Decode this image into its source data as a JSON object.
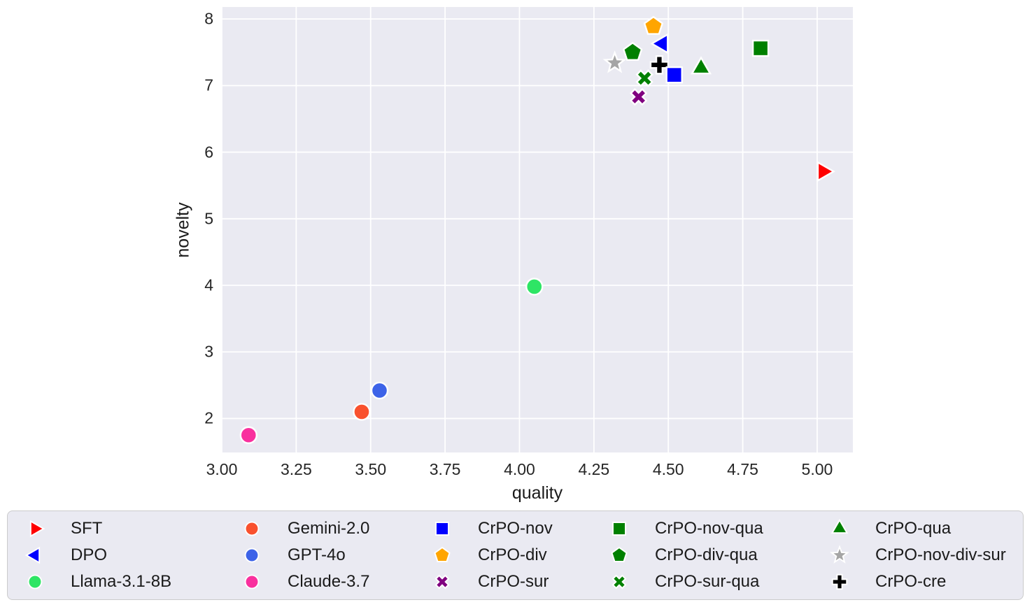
{
  "figure": {
    "background": "#ffffff",
    "plot_background": "#eaeaf2",
    "grid_color": "#ffffff",
    "text_color": "#262626"
  },
  "chart_data": {
    "type": "scatter",
    "title": "",
    "xlabel": "quality",
    "ylabel": "novelty",
    "xlim": [
      3.0,
      5.12
    ],
    "ylim": [
      1.49,
      8.18
    ],
    "grid": true,
    "legend_position": "bottom",
    "x_ticks": [
      3.0,
      3.25,
      3.5,
      3.75,
      4.0,
      4.25,
      4.5,
      4.75,
      5.0
    ],
    "x_tick_labels": [
      "3.00",
      "3.25",
      "3.50",
      "3.75",
      "4.00",
      "4.25",
      "4.50",
      "4.75",
      "5.00"
    ],
    "y_ticks": [
      2,
      3,
      4,
      5,
      6,
      7,
      8
    ],
    "y_tick_labels": [
      "2",
      "3",
      "4",
      "5",
      "6",
      "7",
      "8"
    ],
    "marker_edge_color": "#ffffff",
    "series": [
      {
        "name": "SFT",
        "marker": "triangle-right",
        "color": "#ff0000",
        "x": 5.02,
        "y": 5.71
      },
      {
        "name": "DPO",
        "marker": "triangle-left",
        "color": "#0000ff",
        "x": 4.48,
        "y": 7.63
      },
      {
        "name": "Llama-3.1-8B",
        "marker": "circle",
        "color": "#2ee565",
        "x": 4.05,
        "y": 3.98
      },
      {
        "name": "Gemini-2.0",
        "marker": "circle",
        "color": "#f9512e",
        "x": 3.47,
        "y": 2.1
      },
      {
        "name": "GPT-4o",
        "marker": "circle",
        "color": "#3d63e8",
        "x": 3.53,
        "y": 2.42
      },
      {
        "name": "Claude-3.7",
        "marker": "circle",
        "color": "#f9309e",
        "x": 3.09,
        "y": 1.75
      },
      {
        "name": "CrPO-nov",
        "marker": "square",
        "color": "#0000ff",
        "x": 4.52,
        "y": 7.16
      },
      {
        "name": "CrPO-div",
        "marker": "pentagon",
        "color": "#ffa500",
        "x": 4.45,
        "y": 7.89
      },
      {
        "name": "CrPO-sur",
        "marker": "x",
        "color": "#800080",
        "x": 4.4,
        "y": 6.83
      },
      {
        "name": "CrPO-nov-qua",
        "marker": "square",
        "color": "#008000",
        "x": 4.81,
        "y": 7.56
      },
      {
        "name": "CrPO-div-qua",
        "marker": "pentagon",
        "color": "#008000",
        "x": 4.38,
        "y": 7.5
      },
      {
        "name": "CrPO-sur-qua",
        "marker": "x",
        "color": "#008000",
        "x": 4.42,
        "y": 7.11
      },
      {
        "name": "CrPO-qua",
        "marker": "triangle-up",
        "color": "#008000",
        "x": 4.61,
        "y": 7.26
      },
      {
        "name": "CrPO-nov-div-sur",
        "marker": "star",
        "color": "#a5a5a5",
        "x": 4.32,
        "y": 7.34
      },
      {
        "name": "CrPO-cre",
        "marker": "plus",
        "color": "#000000",
        "x": 4.47,
        "y": 7.31
      }
    ],
    "draw_order": [
      "SFT",
      "DPO",
      "Llama-3.1-8B",
      "Gemini-2.0",
      "GPT-4o",
      "Claude-3.7",
      "CrPO-div",
      "CrPO-sur",
      "CrPO-div-qua",
      "CrPO-sur-qua",
      "CrPO-nov-div-sur",
      "CrPO-cre",
      "CrPO-nov",
      "CrPO-nov-qua",
      "CrPO-qua"
    ]
  }
}
